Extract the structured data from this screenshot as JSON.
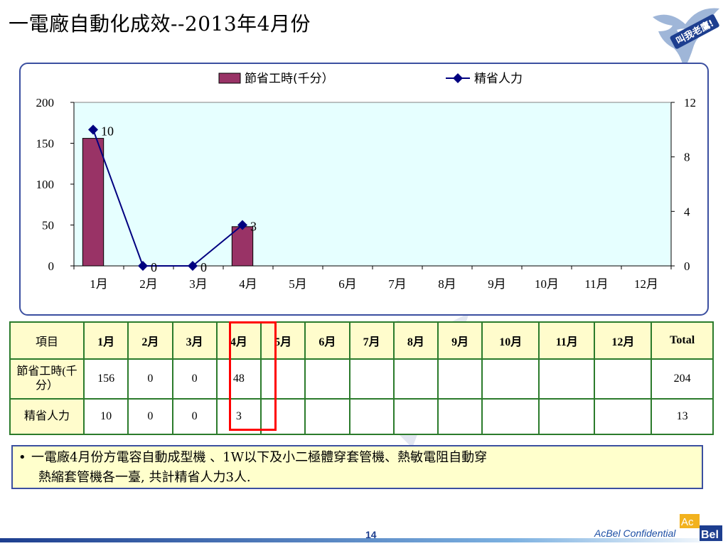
{
  "title": "一電廠自動化成效--2013年4月份",
  "logo_badge": "叫我老鷹!",
  "chart_data": {
    "type": "bar",
    "categories": [
      "1月",
      "2月",
      "3月",
      "4月",
      "5月",
      "6月",
      "7月",
      "8月",
      "9月",
      "10月",
      "11月",
      "12月"
    ],
    "series": [
      {
        "name": "節省工時(千分）",
        "kind": "bar",
        "axis": "left",
        "color": "#993366",
        "values": [
          156,
          0,
          0,
          48,
          null,
          null,
          null,
          null,
          null,
          null,
          null,
          null
        ]
      },
      {
        "name": "精省人力",
        "kind": "line",
        "axis": "right",
        "color": "#000080",
        "values": [
          10,
          0,
          0,
          3,
          null,
          null,
          null,
          null,
          null,
          null,
          null,
          null
        ]
      }
    ],
    "y_left": {
      "min": 0,
      "max": 200,
      "ticks": [
        0,
        50,
        100,
        150,
        200
      ]
    },
    "y_right": {
      "min": 0,
      "max": 12,
      "ticks": [
        0,
        4,
        8,
        12
      ]
    },
    "legend_position": "top",
    "plot_background": "#e6ffff"
  },
  "table": {
    "header": [
      "項目",
      "1月",
      "2月",
      "3月",
      "4月",
      "5月",
      "6月",
      "7月",
      "8月",
      "9月",
      "10月",
      "11月",
      "12月",
      "Total"
    ],
    "rows": [
      {
        "label": "節省工時(千分）",
        "cells": [
          "156",
          "0",
          "0",
          "48",
          "",
          "",
          "",
          "",
          "",
          "",
          "",
          "",
          "204"
        ]
      },
      {
        "label": "精省人力",
        "cells": [
          "10",
          "0",
          "0",
          "3",
          "",
          "",
          "",
          "",
          "",
          "",
          "",
          "",
          "13"
        ]
      }
    ]
  },
  "note": {
    "bullet": "•",
    "line1": "一電廠4月份方電容自動成型機 、1W以下及小二極體穿套管機、熱敏電阻自動穿",
    "line2": "熱縮套管機各一臺, 共計精省人力3人."
  },
  "footer": {
    "page": "14",
    "confidential": "AcBel Confidential",
    "logo_ac": "Ac",
    "logo_bel": "Bel"
  }
}
